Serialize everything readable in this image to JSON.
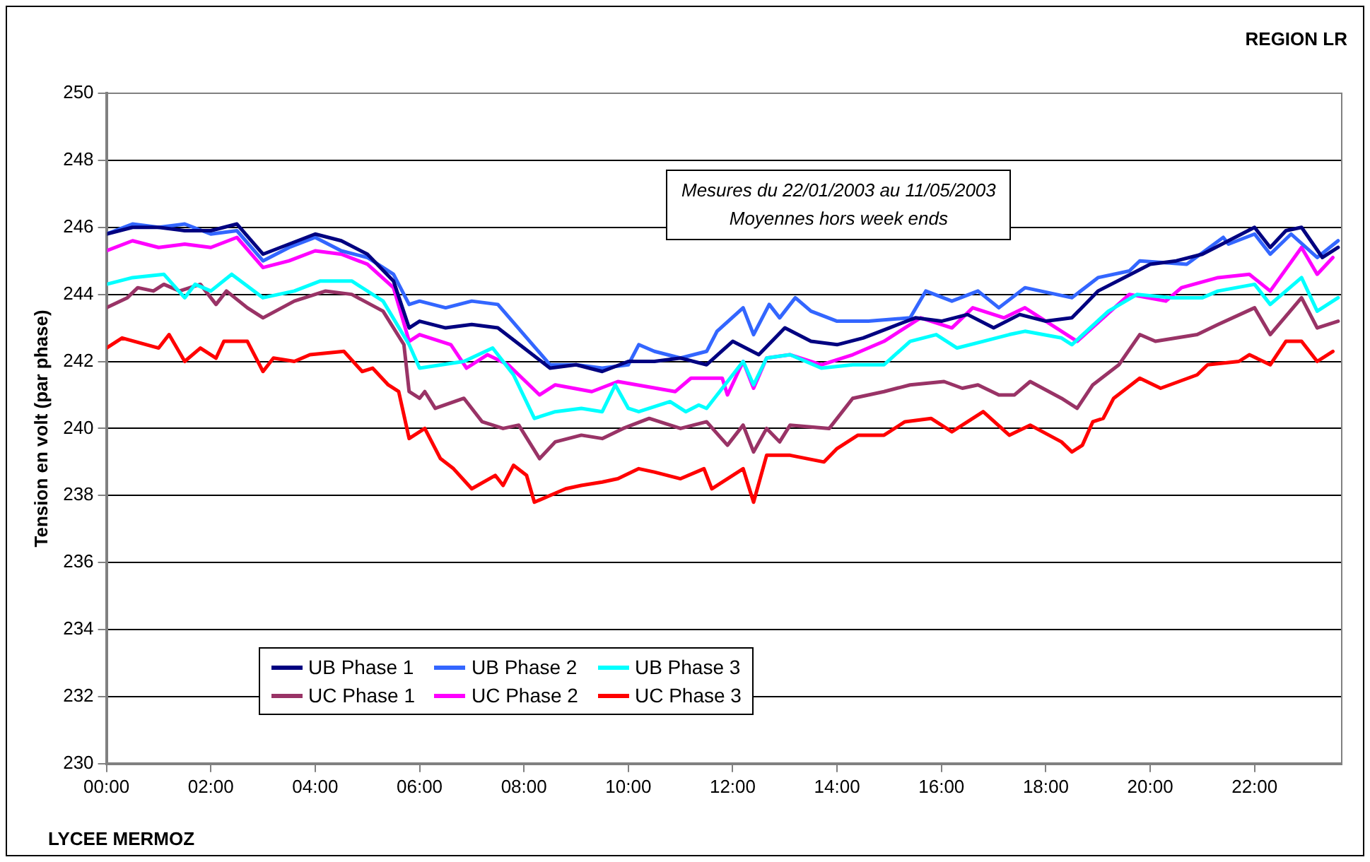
{
  "chart_data": {
    "type": "line",
    "ylabel": "Tension en volt (par phase)",
    "annotations": [
      "REGION LR",
      "LYCEE MERMOZ",
      "Mesures du 22/01/2003 au 11/05/2003",
      "Moyennes hors week ends"
    ],
    "xlim": [
      0,
      23.67
    ],
    "xticks": [
      {
        "value": 0,
        "label": "00:00"
      },
      {
        "value": 2,
        "label": "02:00"
      },
      {
        "value": 4,
        "label": "04:00"
      },
      {
        "value": 6,
        "label": "06:00"
      },
      {
        "value": 8,
        "label": "08:00"
      },
      {
        "value": 10,
        "label": "10:00"
      },
      {
        "value": 12,
        "label": "12:00"
      },
      {
        "value": 14,
        "label": "14:00"
      },
      {
        "value": 16,
        "label": "16:00"
      },
      {
        "value": 18,
        "label": "18:00"
      },
      {
        "value": 20,
        "label": "20:00"
      },
      {
        "value": 22,
        "label": "22:00"
      }
    ],
    "ylim": [
      230,
      250
    ],
    "yticks": [
      230,
      232,
      234,
      236,
      238,
      240,
      242,
      244,
      246,
      248,
      250
    ],
    "grid": "y",
    "legend": "bottom left",
    "line_style": "solid",
    "series": [
      {
        "name": "UB Phase 1",
        "color": "#000080",
        "x": [
          0,
          0.5,
          1,
          1.5,
          2,
          2.5,
          3,
          3.5,
          4,
          4.5,
          5,
          5.5,
          5.8,
          6,
          6.5,
          7,
          7.5,
          8,
          8.5,
          9,
          9.5,
          10,
          10.5,
          11,
          11.5,
          12,
          12.5,
          13,
          13.5,
          14,
          14.5,
          15,
          15.5,
          16,
          16.5,
          17,
          17.5,
          18,
          18.5,
          19,
          19.5,
          20,
          20.5,
          21,
          21.5,
          22,
          22.3,
          22.6,
          22.9,
          23.3,
          23.6
        ],
        "values": [
          245.8,
          246.0,
          246.0,
          245.9,
          245.9,
          246.1,
          245.2,
          245.5,
          245.8,
          245.6,
          245.2,
          244.4,
          243.0,
          243.2,
          243.0,
          243.1,
          243.0,
          242.4,
          241.8,
          241.9,
          241.7,
          242.0,
          242.0,
          242.1,
          241.9,
          242.6,
          242.2,
          243.0,
          242.6,
          242.5,
          242.7,
          243.0,
          243.3,
          243.2,
          243.4,
          243.0,
          243.4,
          243.2,
          243.3,
          244.1,
          244.5,
          244.9,
          245.0,
          245.2,
          245.6,
          246.0,
          245.4,
          245.9,
          246.0,
          245.1,
          245.4
        ]
      },
      {
        "name": "UB Phase 2",
        "color": "#3366ff",
        "x": [
          0,
          0.5,
          1,
          1.5,
          2,
          2.5,
          3,
          3.5,
          4,
          4.5,
          5,
          5.5,
          5.8,
          6,
          6.5,
          7,
          7.5,
          8,
          8.5,
          9,
          9.5,
          10,
          10.2,
          10.5,
          11,
          11.5,
          11.7,
          12.2,
          12.4,
          12.7,
          12.9,
          13.2,
          13.5,
          14,
          14.6,
          15.4,
          15.7,
          16.2,
          16.7,
          17.1,
          17.6,
          18.2,
          18.5,
          19,
          19.6,
          19.8,
          20.7,
          21.4,
          21.5,
          22,
          22.3,
          22.7,
          23.2,
          23.6
        ],
        "values": [
          245.8,
          246.1,
          246.0,
          246.1,
          245.8,
          245.9,
          245.0,
          245.4,
          245.7,
          245.3,
          245.1,
          244.6,
          243.7,
          243.8,
          243.6,
          243.8,
          243.7,
          242.8,
          241.9,
          241.9,
          241.8,
          241.9,
          242.5,
          242.3,
          242.1,
          242.3,
          242.9,
          243.6,
          242.8,
          243.7,
          243.3,
          243.9,
          243.5,
          243.2,
          243.2,
          243.3,
          244.1,
          243.8,
          244.1,
          243.6,
          244.2,
          244.0,
          243.9,
          244.5,
          244.7,
          245.0,
          244.9,
          245.7,
          245.5,
          245.8,
          245.2,
          245.8,
          245.1,
          245.6
        ]
      },
      {
        "name": "UB Phase 3",
        "color": "#00ffff",
        "x": [
          0,
          0.5,
          1.1,
          1.5,
          1.7,
          2,
          2.4,
          3,
          3.6,
          4.1,
          4.7,
          5.3,
          5.8,
          6,
          6.85,
          7.4,
          7.8,
          8.2,
          8.6,
          9.1,
          9.5,
          9.75,
          10,
          10.2,
          10.8,
          11.1,
          11.35,
          11.5,
          11.8,
          12.2,
          12.4,
          12.65,
          13.1,
          13.7,
          14.3,
          14.9,
          15.4,
          15.9,
          16.3,
          16.8,
          17.3,
          17.6,
          18.3,
          18.5,
          19.2,
          19.75,
          20.4,
          21,
          21.3,
          22,
          22.3,
          22.9,
          23.2,
          23.6
        ],
        "values": [
          244.3,
          244.5,
          244.6,
          243.9,
          244.3,
          244.1,
          244.6,
          243.9,
          244.1,
          244.4,
          244.4,
          243.8,
          242.5,
          241.8,
          242.0,
          242.4,
          241.6,
          240.3,
          240.5,
          240.6,
          240.5,
          241.3,
          240.6,
          240.5,
          240.8,
          240.5,
          240.7,
          240.6,
          241.2,
          242.0,
          241.3,
          242.1,
          242.2,
          241.8,
          241.9,
          241.9,
          242.6,
          242.8,
          242.4,
          242.6,
          242.8,
          242.9,
          242.7,
          242.5,
          243.5,
          244.0,
          243.9,
          243.9,
          244.1,
          244.3,
          243.7,
          244.5,
          243.5,
          243.9
        ]
      },
      {
        "name": "UC Phase 1",
        "color": "#993366",
        "x": [
          0,
          0.4,
          0.6,
          0.9,
          1.1,
          1.4,
          1.8,
          2.1,
          2.3,
          2.7,
          3,
          3.6,
          4.2,
          4.7,
          5.3,
          5.7,
          5.8,
          6,
          6.1,
          6.3,
          6.85,
          7.2,
          7.6,
          7.9,
          8.3,
          8.6,
          9.1,
          9.5,
          9.9,
          10.4,
          11,
          11.5,
          11.9,
          12.2,
          12.4,
          12.65,
          12.9,
          13.1,
          13.85,
          14.3,
          14.9,
          15.4,
          16.05,
          16.4,
          16.7,
          17.1,
          17.4,
          17.7,
          18.3,
          18.6,
          18.9,
          19.4,
          19.8,
          20.1,
          20.9,
          21.3,
          22,
          22.3,
          22.9,
          23.2,
          23.6
        ],
        "values": [
          243.6,
          243.9,
          244.2,
          244.1,
          244.3,
          244.1,
          244.3,
          243.7,
          244.1,
          243.6,
          243.3,
          243.8,
          244.1,
          244.0,
          243.5,
          242.5,
          241.1,
          240.9,
          241.1,
          240.6,
          240.9,
          240.2,
          240.0,
          240.1,
          239.1,
          239.6,
          239.8,
          239.7,
          240.0,
          240.3,
          240.0,
          240.2,
          239.5,
          240.1,
          239.3,
          240.0,
          239.6,
          240.1,
          240.0,
          240.9,
          241.1,
          241.3,
          241.4,
          241.2,
          241.3,
          241.0,
          241.0,
          241.4,
          240.9,
          240.6,
          241.3,
          241.9,
          242.8,
          242.6,
          242.8,
          243.1,
          243.6,
          242.8,
          243.9,
          243.0,
          243.2
        ]
      },
      {
        "name": "UC Phase 2",
        "color": "#ff00ff",
        "x": [
          0,
          0.5,
          1,
          1.5,
          2,
          2.5,
          3,
          3.5,
          4,
          4.5,
          5,
          5.5,
          5.8,
          6,
          6.6,
          6.9,
          7.3,
          7.7,
          8.3,
          8.6,
          9.3,
          9.8,
          10.9,
          11.2,
          11.8,
          11.9,
          12.2,
          12.4,
          12.65,
          13.1,
          13.7,
          14.3,
          14.9,
          15.6,
          16.2,
          16.6,
          17.2,
          17.6,
          18.6,
          19.6,
          20.3,
          20.6,
          21.3,
          21.9,
          22.3,
          22.9,
          23.2,
          23.5
        ],
        "values": [
          245.3,
          245.6,
          245.4,
          245.5,
          245.4,
          245.7,
          244.8,
          245.0,
          245.3,
          245.2,
          244.9,
          244.2,
          242.6,
          242.8,
          242.5,
          241.8,
          242.2,
          241.9,
          241.0,
          241.3,
          241.1,
          241.4,
          241.1,
          241.5,
          241.5,
          241.0,
          242.0,
          241.2,
          242.1,
          242.2,
          241.9,
          242.2,
          242.6,
          243.3,
          243.0,
          243.6,
          243.3,
          243.6,
          242.6,
          244.0,
          243.8,
          244.2,
          244.5,
          244.6,
          244.1,
          245.4,
          244.6,
          245.1
        ]
      },
      {
        "name": "UC Phase 3",
        "color": "#ff0000",
        "x": [
          0,
          0.3,
          1,
          1.2,
          1.5,
          1.8,
          2.1,
          2.25,
          2.7,
          3,
          3.2,
          3.6,
          3.9,
          4.55,
          4.9,
          5.1,
          5.4,
          5.6,
          5.8,
          6,
          6.1,
          6.4,
          6.65,
          7,
          7.45,
          7.6,
          7.8,
          8.05,
          8.2,
          8.5,
          8.8,
          9.1,
          9.5,
          9.8,
          10.2,
          10.5,
          11,
          11.45,
          11.6,
          11.9,
          12.2,
          12.4,
          12.65,
          13.1,
          13.75,
          14,
          14.4,
          14.9,
          15.3,
          15.8,
          16.2,
          16.8,
          17.3,
          17.7,
          18.3,
          18.5,
          18.7,
          18.9,
          19.1,
          19.3,
          19.8,
          20.2,
          20.9,
          21.1,
          21.7,
          21.9,
          22.3,
          22.6,
          22.9,
          23.2,
          23.5
        ],
        "values": [
          242.4,
          242.7,
          242.4,
          242.8,
          242.0,
          242.4,
          242.1,
          242.6,
          242.6,
          241.7,
          242.1,
          242.0,
          242.2,
          242.3,
          241.7,
          241.8,
          241.3,
          241.1,
          239.7,
          239.9,
          240.0,
          239.1,
          238.8,
          238.2,
          238.6,
          238.3,
          238.9,
          238.6,
          237.8,
          238.0,
          238.2,
          238.3,
          238.4,
          238.5,
          238.8,
          238.7,
          238.5,
          238.8,
          238.2,
          238.5,
          238.8,
          237.8,
          239.2,
          239.2,
          239.0,
          239.4,
          239.8,
          239.8,
          240.2,
          240.3,
          239.9,
          240.5,
          239.8,
          240.1,
          239.6,
          239.3,
          239.5,
          240.2,
          240.3,
          240.9,
          241.5,
          241.2,
          241.6,
          241.9,
          242.0,
          242.2,
          241.9,
          242.6,
          242.6,
          242.0,
          242.3
        ]
      }
    ]
  }
}
